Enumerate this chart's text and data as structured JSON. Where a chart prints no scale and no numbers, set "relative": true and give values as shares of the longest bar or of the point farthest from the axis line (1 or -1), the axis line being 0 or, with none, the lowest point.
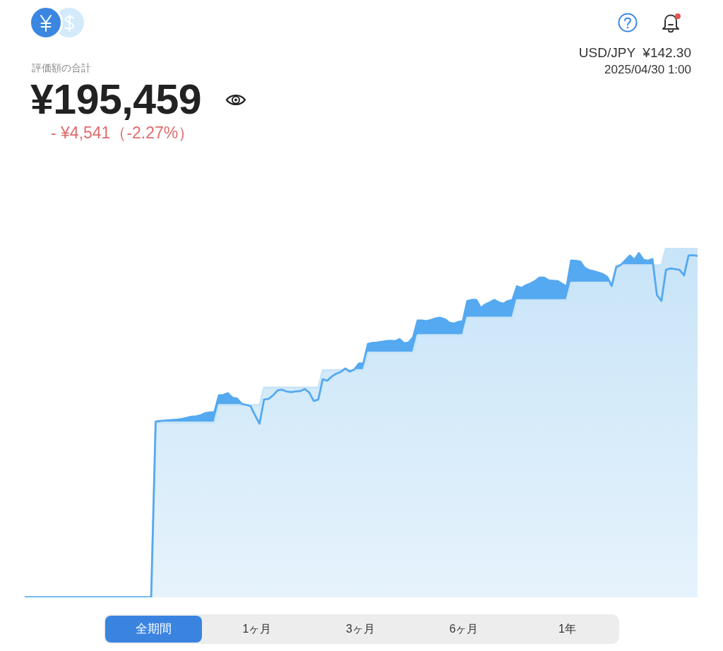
{
  "chart_data": {
    "type": "area",
    "title": "評価額の合計",
    "subtitle": "¥195,459",
    "annotations": [
      "- ¥4,541（-2.27%）",
      "USD/JPY  ¥142.30",
      "2025/04/30 1:00",
      "全期間",
      "1ヶ月",
      "3ヶ月",
      "6ヶ月",
      "1年"
    ],
    "relative": true,
    "categories": [
      null,
      null,
      null,
      null,
      null,
      null,
      null,
      null,
      null,
      null,
      null,
      null,
      null,
      null,
      null,
      null,
      null,
      null,
      null,
      null,
      null,
      null,
      null,
      null,
      null,
      null,
      null,
      null,
      null,
      null,
      null,
      null,
      null,
      null,
      null,
      null,
      null,
      null,
      null,
      null,
      null,
      null,
      null,
      null,
      null,
      null,
      null,
      null,
      null,
      null,
      null,
      null,
      null,
      null,
      null,
      null,
      null,
      null,
      null,
      null,
      null,
      null,
      null,
      null,
      null,
      null,
      null,
      null,
      null,
      null,
      null,
      null,
      null,
      null,
      null,
      null,
      null,
      null,
      null,
      null,
      null,
      null,
      null,
      null,
      null,
      null,
      null,
      null,
      null,
      null,
      null,
      null,
      null,
      null,
      null,
      null,
      null,
      null,
      null,
      null,
      null,
      null,
      null,
      null,
      null,
      null,
      null,
      null,
      null,
      null,
      null,
      null,
      null,
      null,
      null,
      null,
      null,
      null,
      null,
      null,
      null,
      null,
      null,
      null,
      null,
      null,
      null,
      null,
      null,
      null,
      null,
      null,
      null,
      null,
      null,
      null,
      null,
      null,
      null,
      null,
      null,
      null,
      null,
      null,
      null,
      null,
      null,
      null,
      null,
      null
    ],
    "series": [
      {
        "color": "#c8e4f8",
        "values": [
          0,
          0,
          0,
          0,
          0,
          0,
          0,
          0,
          0,
          0,
          0,
          0,
          0,
          0,
          0,
          0,
          0,
          0,
          0,
          0,
          0,
          0,
          0,
          0,
          0,
          0,
          0,
          0,
          0,
          0.5,
          0.5,
          0.5,
          0.5,
          0.5,
          0.5,
          0.5,
          0.5,
          0.5,
          0.5,
          0.5,
          0.5,
          0.5,
          0.5,
          0.55,
          0.55,
          0.55,
          0.55,
          0.55,
          0.55,
          0.55,
          0.55,
          0.55,
          0.55,
          0.6,
          0.6,
          0.6,
          0.6,
          0.6,
          0.6,
          0.6,
          0.6,
          0.6,
          0.6,
          0.6,
          0.6,
          0.6,
          0.65,
          0.65,
          0.65,
          0.65,
          0.65,
          0.65,
          0.65,
          0.65,
          0.65,
          0.65,
          0.7,
          0.7,
          0.7,
          0.7,
          0.7,
          0.7,
          0.7,
          0.7,
          0.7,
          0.7,
          0.7,
          0.75,
          0.75,
          0.75,
          0.75,
          0.75,
          0.75,
          0.75,
          0.75,
          0.75,
          0.75,
          0.75,
          0.8,
          0.8,
          0.8,
          0.8,
          0.8,
          0.8,
          0.8,
          0.8,
          0.8,
          0.8,
          0.8,
          0.85,
          0.85,
          0.85,
          0.85,
          0.85,
          0.85,
          0.85,
          0.85,
          0.85,
          0.85,
          0.85,
          0.85,
          0.9,
          0.9,
          0.9,
          0.9,
          0.9,
          0.9,
          0.9,
          0.9,
          0.9,
          0.9,
          0.95,
          0.95,
          0.95,
          0.95,
          0.95,
          0.95,
          0.95,
          0.95,
          0.95,
          0.95,
          0.95,
          1,
          1,
          1,
          1,
          1,
          1,
          1,
          1
        ]
      },
      {
        "color": "#55a9f0",
        "values": [
          0,
          0,
          0,
          0,
          0,
          0,
          0,
          0,
          0,
          0,
          0,
          0,
          0,
          0,
          0,
          0,
          0,
          0,
          0,
          0,
          0,
          0,
          0,
          0,
          0,
          0,
          0,
          0,
          0,
          0.503,
          0.505,
          0.506,
          0.507,
          0.508,
          0.509,
          0.511,
          0.514,
          0.517,
          0.518,
          0.521,
          0.527,
          0.529,
          0.53,
          0.578,
          0.579,
          0.584,
          0.571,
          0.569,
          0.554,
          0.551,
          0.547,
          0.521,
          0.497,
          0.566,
          0.568,
          0.578,
          0.592,
          0.594,
          0.589,
          0.587,
          0.589,
          0.59,
          0.596,
          0.586,
          0.562,
          0.566,
          0.624,
          0.62,
          0.632,
          0.64,
          0.645,
          0.655,
          0.646,
          0.652,
          0.669,
          0.67,
          0.725,
          0.728,
          0.729,
          0.731,
          0.733,
          0.734,
          0.733,
          0.739,
          0.727,
          0.729,
          0.744,
          0.792,
          0.792,
          0.79,
          0.794,
          0.798,
          0.8,
          0.796,
          0.786,
          0.783,
          0.788,
          0.79,
          0.848,
          0.851,
          0.851,
          0.828,
          0.838,
          0.844,
          0.851,
          0.844,
          0.84,
          0.848,
          0.851,
          0.89,
          0.885,
          0.893,
          0.898,
          0.905,
          0.915,
          0.915,
          0.907,
          0.906,
          0.905,
          0.897,
          0.889,
          0.964,
          0.963,
          0.961,
          0.943,
          0.936,
          0.933,
          0.929,
          0.925,
          0.917,
          0.891,
          0.945,
          0.951,
          0.964,
          0.978,
          0.966,
          0.985,
          0.966,
          0.963,
          0.968,
          0.865,
          0.848,
          0.937,
          0.941,
          0.939,
          0.937,
          0.921,
          0.978,
          0.979,
          0.977
        ]
      }
    ]
  }
}
